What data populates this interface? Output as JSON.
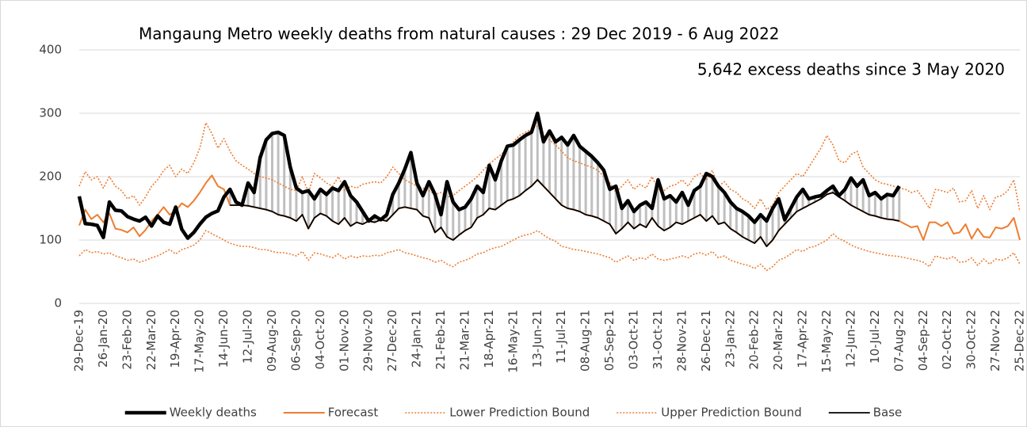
{
  "chart_data": {
    "type": "line",
    "title": "Mangaung Metro weekly deaths from natural causes : 29 Dec 2019  - 6 Aug 2022",
    "annotation": "5,642 excess deaths since 3 May 2020",
    "categories": [
      "29-Dec-19",
      null,
      null,
      null,
      "26-Jan-20",
      null,
      null,
      null,
      "23-Feb-20",
      null,
      null,
      null,
      "22-Mar-20",
      null,
      null,
      null,
      "19-Apr-20",
      null,
      null,
      null,
      "17-May-20",
      null,
      null,
      null,
      "14-Jun-20",
      null,
      null,
      null,
      "12-Jul-20",
      null,
      null,
      null,
      "09-Aug-20",
      null,
      null,
      null,
      "06-Sep-20",
      null,
      null,
      null,
      "04-Oct-20",
      null,
      null,
      null,
      "01-Nov-20",
      null,
      null,
      null,
      "29-Nov-20",
      null,
      null,
      null,
      "27-Dec-20",
      null,
      null,
      null,
      "24-Jan-21",
      null,
      null,
      null,
      "21-Feb-21",
      null,
      null,
      null,
      "21-Mar-21",
      null,
      null,
      null,
      "18-Apr-21",
      null,
      null,
      null,
      "16-May-21",
      null,
      null,
      null,
      "13-Jun-21",
      null,
      null,
      null,
      "11-Jul-21",
      null,
      null,
      null,
      "08-Aug-21",
      null,
      null,
      null,
      "05-Sep-21",
      null,
      null,
      null,
      "03-Oct-21",
      null,
      null,
      null,
      "31-Oct-21",
      null,
      null,
      null,
      "28-Nov-21",
      null,
      null,
      null,
      "26-Dec-21",
      null,
      null,
      null,
      "23-Jan-22",
      null,
      null,
      null,
      "20-Feb-22",
      null,
      null,
      null,
      "20-Mar-22",
      null,
      null,
      null,
      "17-Apr-22",
      null,
      null,
      null,
      "15-May-22",
      null,
      null,
      null,
      "12-Jun-22",
      null,
      null,
      null,
      "10-Jul-22",
      null,
      null,
      null,
      "07-Aug-22",
      null,
      null,
      null,
      "04-Sep-22",
      null,
      null,
      null,
      "02-Oct-22",
      null,
      null,
      null,
      "30-Oct-22",
      null,
      null,
      null,
      "27-Nov-22",
      null,
      null,
      null,
      "25-Dec-22"
    ],
    "series": [
      {
        "name": "Weekly deaths",
        "color": "#000000",
        "style": "thick",
        "values": [
          169,
          126,
          125,
          123,
          104,
          160,
          147,
          146,
          137,
          133,
          130,
          136,
          122,
          138,
          128,
          125,
          152,
          117,
          103,
          112,
          125,
          136,
          142,
          146,
          168,
          180,
          160,
          155,
          190,
          175,
          230,
          258,
          268,
          270,
          265,
          215,
          182,
          175,
          178,
          165,
          180,
          172,
          182,
          178,
          192,
          170,
          160,
          145,
          130,
          138,
          132,
          140,
          172,
          190,
          212,
          238,
          190,
          170,
          192,
          172,
          140,
          192,
          160,
          148,
          152,
          165,
          185,
          175,
          218,
          195,
          225,
          248,
          250,
          258,
          265,
          270,
          300,
          255,
          272,
          255,
          262,
          250,
          265,
          248,
          240,
          232,
          222,
          210,
          180,
          185,
          150,
          162,
          145,
          155,
          160,
          150,
          195,
          165,
          170,
          160,
          175,
          155,
          178,
          185,
          205,
          200,
          185,
          175,
          160,
          150,
          145,
          138,
          128,
          140,
          130,
          150,
          165,
          132,
          150,
          168,
          180,
          165,
          168,
          170,
          178,
          185,
          170,
          180,
          198,
          185,
          195,
          170,
          175,
          165,
          172,
          170,
          185,
          null,
          null,
          null,
          null,
          null,
          null,
          null,
          null,
          null,
          null,
          null,
          null,
          null,
          null,
          null,
          null,
          null,
          null,
          null,
          null
        ]
      },
      {
        "name": "Forecast",
        "color": "#ED7D31",
        "style": "solid",
        "values": [
          123,
          148,
          133,
          140,
          128,
          142,
          118,
          116,
          112,
          120,
          106,
          116,
          130,
          140,
          152,
          140,
          146,
          158,
          152,
          162,
          175,
          190,
          202,
          185,
          180,
          155,
          155,
          155,
          154,
          152,
          150,
          148,
          145,
          140,
          138,
          135,
          130,
          140,
          118,
          135,
          142,
          138,
          130,
          125,
          135,
          122,
          128,
          125,
          130,
          128,
          132,
          130,
          140,
          150,
          152,
          150,
          148,
          138,
          135,
          112,
          120,
          105,
          100,
          108,
          115,
          120,
          135,
          140,
          150,
          148,
          155,
          162,
          165,
          170,
          178,
          185,
          195,
          185,
          175,
          165,
          155,
          150,
          148,
          145,
          140,
          138,
          135,
          130,
          125,
          110,
          118,
          128,
          118,
          125,
          120,
          135,
          122,
          115,
          120,
          128,
          125,
          130,
          135,
          140,
          130,
          138,
          125,
          128,
          118,
          112,
          105,
          100,
          95,
          105,
          90,
          100,
          115,
          125,
          135,
          145,
          150,
          155,
          160,
          165,
          172,
          175,
          168,
          162,
          155,
          150,
          145,
          140,
          138,
          135,
          133,
          132,
          130,
          125,
          120,
          122,
          100,
          128,
          128,
          122,
          128,
          110,
          112,
          125,
          102,
          118,
          105,
          104,
          120,
          118,
          122,
          135,
          100
        ]
      },
      {
        "name": "Lower Prediction Bound",
        "color": "#ED7D31",
        "style": "dotted",
        "values": [
          75,
          85,
          80,
          82,
          78,
          80,
          75,
          72,
          68,
          70,
          65,
          68,
          72,
          75,
          80,
          85,
          78,
          85,
          88,
          92,
          100,
          115,
          110,
          105,
          100,
          95,
          92,
          90,
          90,
          88,
          85,
          85,
          82,
          80,
          80,
          78,
          75,
          82,
          68,
          80,
          78,
          75,
          72,
          78,
          70,
          75,
          72,
          75,
          74,
          76,
          75,
          80,
          82,
          85,
          80,
          78,
          75,
          72,
          70,
          65,
          68,
          62,
          58,
          65,
          68,
          72,
          78,
          80,
          85,
          88,
          90,
          95,
          100,
          105,
          108,
          110,
          115,
          108,
          102,
          98,
          90,
          88,
          85,
          84,
          82,
          80,
          78,
          75,
          72,
          65,
          70,
          75,
          68,
          72,
          70,
          78,
          70,
          68,
          70,
          72,
          75,
          72,
          78,
          80,
          76,
          82,
          72,
          75,
          68,
          65,
          62,
          60,
          55,
          62,
          52,
          58,
          68,
          72,
          78,
          85,
          82,
          88,
          90,
          95,
          100,
          110,
          102,
          98,
          92,
          88,
          85,
          82,
          80,
          78,
          76,
          75,
          74,
          72,
          70,
          68,
          65,
          58,
          75,
          72,
          70,
          74,
          65,
          66,
          72,
          60,
          70,
          62,
          70,
          68,
          72,
          80,
          62
        ]
      },
      {
        "name": "Upper Prediction Bound",
        "color": "#ED7D31",
        "style": "dotted",
        "values": [
          185,
          208,
          195,
          200,
          182,
          200,
          185,
          178,
          165,
          170,
          155,
          168,
          185,
          195,
          210,
          218,
          200,
          212,
          205,
          222,
          245,
          285,
          268,
          245,
          260,
          240,
          225,
          218,
          212,
          205,
          200,
          198,
          195,
          190,
          185,
          180,
          178,
          200,
          175,
          205,
          198,
          190,
          185,
          200,
          178,
          185,
          182,
          188,
          190,
          192,
          190,
          200,
          215,
          205,
          195,
          190,
          185,
          182,
          178,
          172,
          175,
          168,
          170,
          178,
          185,
          192,
          200,
          210,
          220,
          228,
          235,
          245,
          255,
          265,
          270,
          275,
          280,
          265,
          258,
          250,
          240,
          230,
          225,
          222,
          218,
          215,
          210,
          200,
          190,
          175,
          185,
          195,
          180,
          188,
          182,
          200,
          180,
          178,
          185,
          188,
          195,
          185,
          200,
          205,
          195,
          210,
          185,
          192,
          180,
          175,
          165,
          160,
          150,
          165,
          148,
          155,
          175,
          185,
          195,
          205,
          200,
          215,
          230,
          245,
          265,
          250,
          225,
          222,
          235,
          240,
          215,
          205,
          195,
          190,
          188,
          185,
          182,
          180,
          175,
          178,
          165,
          150,
          180,
          178,
          175,
          182,
          160,
          162,
          178,
          150,
          170,
          148,
          168,
          170,
          178,
          195,
          145
        ]
      },
      {
        "name": "Base",
        "color": "#000000",
        "style": "thin",
        "values": [
          null,
          null,
          null,
          null,
          null,
          null,
          null,
          null,
          null,
          null,
          null,
          null,
          null,
          null,
          null,
          null,
          null,
          null,
          null,
          null,
          null,
          null,
          null,
          null,
          null,
          155,
          155,
          155,
          154,
          152,
          150,
          148,
          145,
          140,
          138,
          135,
          130,
          140,
          118,
          135,
          142,
          138,
          130,
          125,
          135,
          122,
          128,
          125,
          130,
          128,
          132,
          130,
          140,
          150,
          152,
          150,
          148,
          138,
          135,
          112,
          120,
          105,
          100,
          108,
          115,
          120,
          135,
          140,
          150,
          148,
          155,
          162,
          165,
          170,
          178,
          185,
          195,
          185,
          175,
          165,
          155,
          150,
          148,
          145,
          140,
          138,
          135,
          130,
          125,
          110,
          118,
          128,
          118,
          125,
          120,
          135,
          122,
          115,
          120,
          128,
          125,
          130,
          135,
          140,
          130,
          138,
          125,
          128,
          118,
          112,
          105,
          100,
          95,
          105,
          90,
          100,
          115,
          125,
          135,
          145,
          150,
          155,
          160,
          165,
          172,
          175,
          168,
          162,
          155,
          150,
          145,
          140,
          138,
          135,
          133,
          132,
          130,
          null,
          null,
          null,
          null,
          null,
          null,
          null,
          null,
          null,
          null,
          null,
          null,
          null,
          null,
          null,
          null,
          null,
          null,
          null,
          null
        ]
      }
    ],
    "excess_fill": "#bfbfbf",
    "ylim": [
      0,
      400
    ],
    "yticks": [
      0,
      100,
      200,
      300,
      400
    ],
    "grid": true,
    "legend": "bottom"
  }
}
